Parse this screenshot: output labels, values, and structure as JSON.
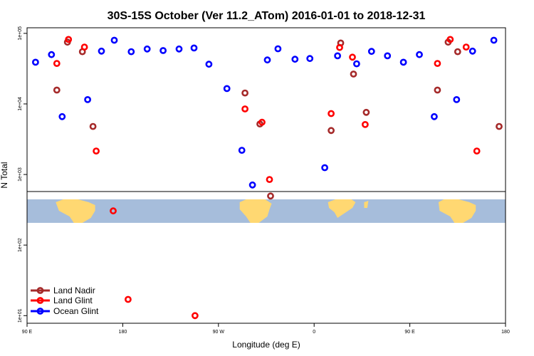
{
  "chart_data": {
    "type": "scatter",
    "title": "30S-15S October (Ver 11.2_ATom)   2016-01-01 to 2018-12-31",
    "xlabel": "Longitude (deg E)",
    "ylabel": "N Total",
    "x_ticks": [
      {
        "value": 0,
        "label": "90 E"
      },
      {
        "value": 90,
        "label": "180"
      },
      {
        "value": 180,
        "label": "90 W"
      },
      {
        "value": 270,
        "label": "0"
      },
      {
        "value": 360,
        "label": "90 E"
      },
      {
        "value": 450,
        "label": "180"
      }
    ],
    "y_ticks": [
      {
        "value": 10,
        "label": "1e+01"
      },
      {
        "value": 100,
        "label": "1e+02"
      },
      {
        "value": 1000,
        "label": "1e+03"
      },
      {
        "value": 10000,
        "label": "1e+04"
      },
      {
        "value": 100000,
        "label": "1e+05"
      }
    ],
    "xlim": [
      0,
      450
    ],
    "ylim": [
      7.8,
      120000
    ],
    "y_scale": "log",
    "legend_position": "bottom-left",
    "map_strip": {
      "ocean_color": "#a6bddb",
      "land_color": "#ffd872"
    },
    "series": [
      {
        "name": "Land Nadir",
        "color": "#a52a2a",
        "x": [
          28,
          38,
          52,
          62,
          205,
          219,
          229,
          286,
          295,
          307,
          319,
          386,
          396,
          405,
          444
        ],
        "y": [
          15700,
          75000,
          55000,
          4800,
          14300,
          5200,
          495,
          4200,
          73000,
          26500,
          7600,
          15700,
          75000,
          55000,
          4800
        ]
      },
      {
        "name": "Land Glint",
        "color": "#ff0000",
        "x": [
          28,
          39,
          54,
          65,
          81,
          95,
          158,
          205,
          221,
          228,
          286,
          294,
          306,
          318,
          386,
          398,
          413,
          423
        ],
        "y": [
          37500,
          82000,
          64000,
          2150,
          305,
          17,
          10,
          8500,
          5500,
          850,
          7300,
          63000,
          46000,
          5100,
          37500,
          82000,
          64000,
          2150
        ]
      },
      {
        "name": "Ocean Glint",
        "color": "#0000ff",
        "x": [
          8,
          23,
          33,
          57,
          70,
          82,
          98,
          113,
          128,
          143,
          157,
          171,
          188,
          202,
          212,
          226,
          236,
          252,
          266,
          280,
          292,
          310,
          324,
          339,
          354,
          369,
          383,
          404,
          419,
          439
        ],
        "y": [
          39000,
          50000,
          6600,
          11500,
          56000,
          80000,
          55000,
          60000,
          57000,
          60000,
          62000,
          36500,
          16500,
          2200,
          710,
          42000,
          60500,
          43000,
          44000,
          1250,
          48000,
          37000,
          55500,
          48000,
          39000,
          50000,
          6600,
          11500,
          56000,
          80000
        ]
      }
    ]
  }
}
